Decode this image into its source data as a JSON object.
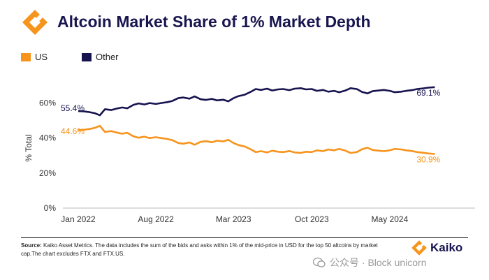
{
  "header": {
    "title": "Altcoin Market Share of 1% Market Depth"
  },
  "colors": {
    "us": "#F7941D",
    "other": "#16134F",
    "title": "#18164F"
  },
  "legend": [
    {
      "name": "US",
      "color": "#F7941D"
    },
    {
      "name": "Other",
      "color": "#16134F"
    }
  ],
  "chart_data": {
    "type": "line",
    "title": "Altcoin Market Share of 1% Market Depth",
    "ylabel": "% Total",
    "xlabel": "",
    "ylim": [
      0,
      0.75
    ],
    "yticks": [
      {
        "value": 0,
        "label": "0%"
      },
      {
        "value": 0.2,
        "label": "20%"
      },
      {
        "value": 0.4,
        "label": "40%"
      },
      {
        "value": 0.6,
        "label": "60%"
      }
    ],
    "xlim": [
      "2021-11-20",
      "2024-12-20"
    ],
    "xticks": [
      {
        "date": "2022-01-01",
        "label": "Jan 2022"
      },
      {
        "date": "2022-08-01",
        "label": "Aug 2022"
      },
      {
        "date": "2023-03-01",
        "label": "Mar 2023"
      },
      {
        "date": "2023-10-01",
        "label": "Oct 2023"
      },
      {
        "date": "2024-05-01",
        "label": "May 2024"
      }
    ],
    "grid": false,
    "legend_position": "top-left",
    "series": [
      {
        "name": "US",
        "color": "#F7941D",
        "points": [
          [
            "2022-01-01",
            0.446
          ],
          [
            "2022-01-15",
            0.447
          ],
          [
            "2022-02-01",
            0.452
          ],
          [
            "2022-02-15",
            0.458
          ],
          [
            "2022-03-01",
            0.47
          ],
          [
            "2022-03-15",
            0.435
          ],
          [
            "2022-04-01",
            0.44
          ],
          [
            "2022-04-15",
            0.432
          ],
          [
            "2022-05-01",
            0.425
          ],
          [
            "2022-05-15",
            0.43
          ],
          [
            "2022-06-01",
            0.41
          ],
          [
            "2022-06-15",
            0.402
          ],
          [
            "2022-07-01",
            0.408
          ],
          [
            "2022-07-15",
            0.4
          ],
          [
            "2022-08-01",
            0.405
          ],
          [
            "2022-08-15",
            0.4
          ],
          [
            "2022-09-01",
            0.395
          ],
          [
            "2022-09-15",
            0.388
          ],
          [
            "2022-10-01",
            0.372
          ],
          [
            "2022-10-15",
            0.368
          ],
          [
            "2022-11-01",
            0.375
          ],
          [
            "2022-11-15",
            0.362
          ],
          [
            "2022-12-01",
            0.378
          ],
          [
            "2022-12-15",
            0.382
          ],
          [
            "2023-01-01",
            0.376
          ],
          [
            "2023-01-15",
            0.385
          ],
          [
            "2023-02-01",
            0.381
          ],
          [
            "2023-02-15",
            0.39
          ],
          [
            "2023-03-01",
            0.372
          ],
          [
            "2023-03-15",
            0.36
          ],
          [
            "2023-04-01",
            0.352
          ],
          [
            "2023-04-15",
            0.338
          ],
          [
            "2023-05-01",
            0.32
          ],
          [
            "2023-05-15",
            0.325
          ],
          [
            "2023-06-01",
            0.318
          ],
          [
            "2023-06-15",
            0.328
          ],
          [
            "2023-07-01",
            0.322
          ],
          [
            "2023-07-15",
            0.32
          ],
          [
            "2023-08-01",
            0.326
          ],
          [
            "2023-08-15",
            0.318
          ],
          [
            "2023-09-01",
            0.315
          ],
          [
            "2023-09-15",
            0.322
          ],
          [
            "2023-10-01",
            0.32
          ],
          [
            "2023-10-15",
            0.33
          ],
          [
            "2023-11-01",
            0.325
          ],
          [
            "2023-11-15",
            0.335
          ],
          [
            "2023-12-01",
            0.33
          ],
          [
            "2023-12-15",
            0.338
          ],
          [
            "2024-01-01",
            0.328
          ],
          [
            "2024-01-15",
            0.315
          ],
          [
            "2024-02-01",
            0.32
          ],
          [
            "2024-02-15",
            0.336
          ],
          [
            "2024-03-01",
            0.345
          ],
          [
            "2024-03-15",
            0.332
          ],
          [
            "2024-04-01",
            0.328
          ],
          [
            "2024-04-15",
            0.325
          ],
          [
            "2024-05-01",
            0.33
          ],
          [
            "2024-05-15",
            0.338
          ],
          [
            "2024-06-01",
            0.335
          ],
          [
            "2024-06-15",
            0.33
          ],
          [
            "2024-07-01",
            0.326
          ],
          [
            "2024-07-15",
            0.32
          ],
          [
            "2024-08-01",
            0.316
          ],
          [
            "2024-08-15",
            0.312
          ],
          [
            "2024-09-01",
            0.309
          ]
        ],
        "start_label": "44.6%",
        "end_label": "30.9%"
      },
      {
        "name": "Other",
        "color": "#16134F",
        "points": [
          [
            "2022-01-01",
            0.554
          ],
          [
            "2022-01-15",
            0.553
          ],
          [
            "2022-02-01",
            0.548
          ],
          [
            "2022-02-15",
            0.542
          ],
          [
            "2022-03-01",
            0.53
          ],
          [
            "2022-03-15",
            0.565
          ],
          [
            "2022-04-01",
            0.56
          ],
          [
            "2022-04-15",
            0.568
          ],
          [
            "2022-05-01",
            0.575
          ],
          [
            "2022-05-15",
            0.57
          ],
          [
            "2022-06-01",
            0.59
          ],
          [
            "2022-06-15",
            0.598
          ],
          [
            "2022-07-01",
            0.592
          ],
          [
            "2022-07-15",
            0.6
          ],
          [
            "2022-08-01",
            0.595
          ],
          [
            "2022-08-15",
            0.6
          ],
          [
            "2022-09-01",
            0.605
          ],
          [
            "2022-09-15",
            0.612
          ],
          [
            "2022-10-01",
            0.628
          ],
          [
            "2022-10-15",
            0.632
          ],
          [
            "2022-11-01",
            0.625
          ],
          [
            "2022-11-15",
            0.638
          ],
          [
            "2022-12-01",
            0.622
          ],
          [
            "2022-12-15",
            0.618
          ],
          [
            "2023-01-01",
            0.624
          ],
          [
            "2023-01-15",
            0.615
          ],
          [
            "2023-02-01",
            0.619
          ],
          [
            "2023-02-15",
            0.61
          ],
          [
            "2023-03-01",
            0.628
          ],
          [
            "2023-03-15",
            0.64
          ],
          [
            "2023-04-01",
            0.648
          ],
          [
            "2023-04-15",
            0.662
          ],
          [
            "2023-05-01",
            0.68
          ],
          [
            "2023-05-15",
            0.675
          ],
          [
            "2023-06-01",
            0.682
          ],
          [
            "2023-06-15",
            0.672
          ],
          [
            "2023-07-01",
            0.678
          ],
          [
            "2023-07-15",
            0.68
          ],
          [
            "2023-08-01",
            0.674
          ],
          [
            "2023-08-15",
            0.682
          ],
          [
            "2023-09-01",
            0.685
          ],
          [
            "2023-09-15",
            0.678
          ],
          [
            "2023-10-01",
            0.68
          ],
          [
            "2023-10-15",
            0.67
          ],
          [
            "2023-11-01",
            0.675
          ],
          [
            "2023-11-15",
            0.665
          ],
          [
            "2023-12-01",
            0.67
          ],
          [
            "2023-12-15",
            0.662
          ],
          [
            "2024-01-01",
            0.672
          ],
          [
            "2024-01-15",
            0.685
          ],
          [
            "2024-02-01",
            0.68
          ],
          [
            "2024-02-15",
            0.664
          ],
          [
            "2024-03-01",
            0.655
          ],
          [
            "2024-03-15",
            0.668
          ],
          [
            "2024-04-01",
            0.672
          ],
          [
            "2024-04-15",
            0.675
          ],
          [
            "2024-05-01",
            0.67
          ],
          [
            "2024-05-15",
            0.662
          ],
          [
            "2024-06-01",
            0.665
          ],
          [
            "2024-06-15",
            0.67
          ],
          [
            "2024-07-01",
            0.674
          ],
          [
            "2024-07-15",
            0.68
          ],
          [
            "2024-08-01",
            0.684
          ],
          [
            "2024-08-15",
            0.688
          ],
          [
            "2024-09-01",
            0.691
          ]
        ],
        "start_label": "55.4%",
        "end_label": "69.1%"
      }
    ]
  },
  "footer": {
    "source_label": "Source:",
    "source_text": "Kaiko Asset Metrics. The data includes the sum of the bids and asks within 1% of the mid-price in USD for the top 50 altcoins by market cap.The chart excludes FTX and FTX.US.",
    "brand": "Kaiko",
    "watermark": "公众号 · Block unicorn"
  }
}
